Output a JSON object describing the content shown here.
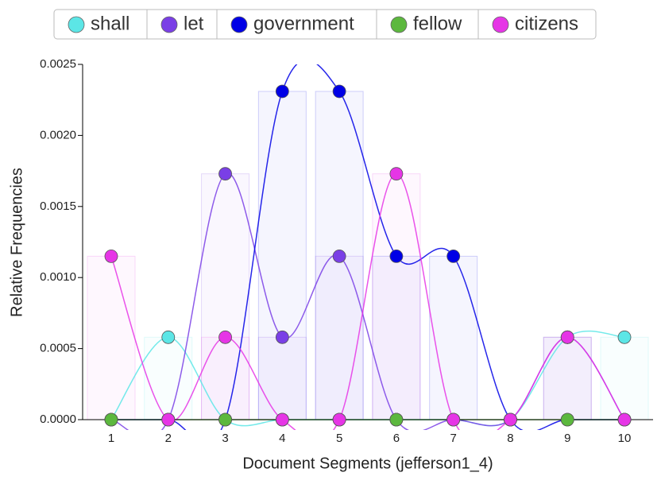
{
  "chart_data": {
    "type": "line",
    "x_label": "Document Segments (jefferson1_4)",
    "y_label": "Relative Frequencies",
    "categories": [
      "1",
      "2",
      "3",
      "4",
      "5",
      "6",
      "7",
      "8",
      "9",
      "10"
    ],
    "ylim": [
      0,
      0.0025
    ],
    "yticks": [
      {
        "value": 0,
        "label": "0.0000"
      },
      {
        "value": 0.0005,
        "label": "0.0005"
      },
      {
        "value": 0.001,
        "label": "0.0010"
      },
      {
        "value": 0.0015,
        "label": "0.0015"
      },
      {
        "value": 0.002,
        "label": "0.0020"
      },
      {
        "value": 0.0025,
        "label": "0.0025"
      }
    ],
    "series": [
      {
        "name": "shall",
        "color": "#5ce6e6",
        "values": [
          0,
          0.00058,
          0,
          0,
          0,
          0,
          0,
          0,
          0.00058,
          0.00058
        ]
      },
      {
        "name": "let",
        "color": "#7a3fe6",
        "values": [
          0,
          0,
          0.00173,
          0.00058,
          0.00115,
          0,
          0,
          0,
          0.00058,
          0
        ]
      },
      {
        "name": "government",
        "color": "#0000e6",
        "values": [
          0,
          0,
          0,
          0.00231,
          0.00231,
          0.00115,
          0.00115,
          0,
          0,
          0
        ]
      },
      {
        "name": "fellow",
        "color": "#5cb83e",
        "values": [
          0,
          0,
          0,
          0,
          0,
          0,
          0,
          0,
          0,
          0
        ]
      },
      {
        "name": "citizens",
        "color": "#e635e6",
        "values": [
          0.00115,
          0,
          0.00058,
          0,
          0,
          0.00173,
          0,
          0,
          0.00058,
          0
        ]
      }
    ]
  }
}
